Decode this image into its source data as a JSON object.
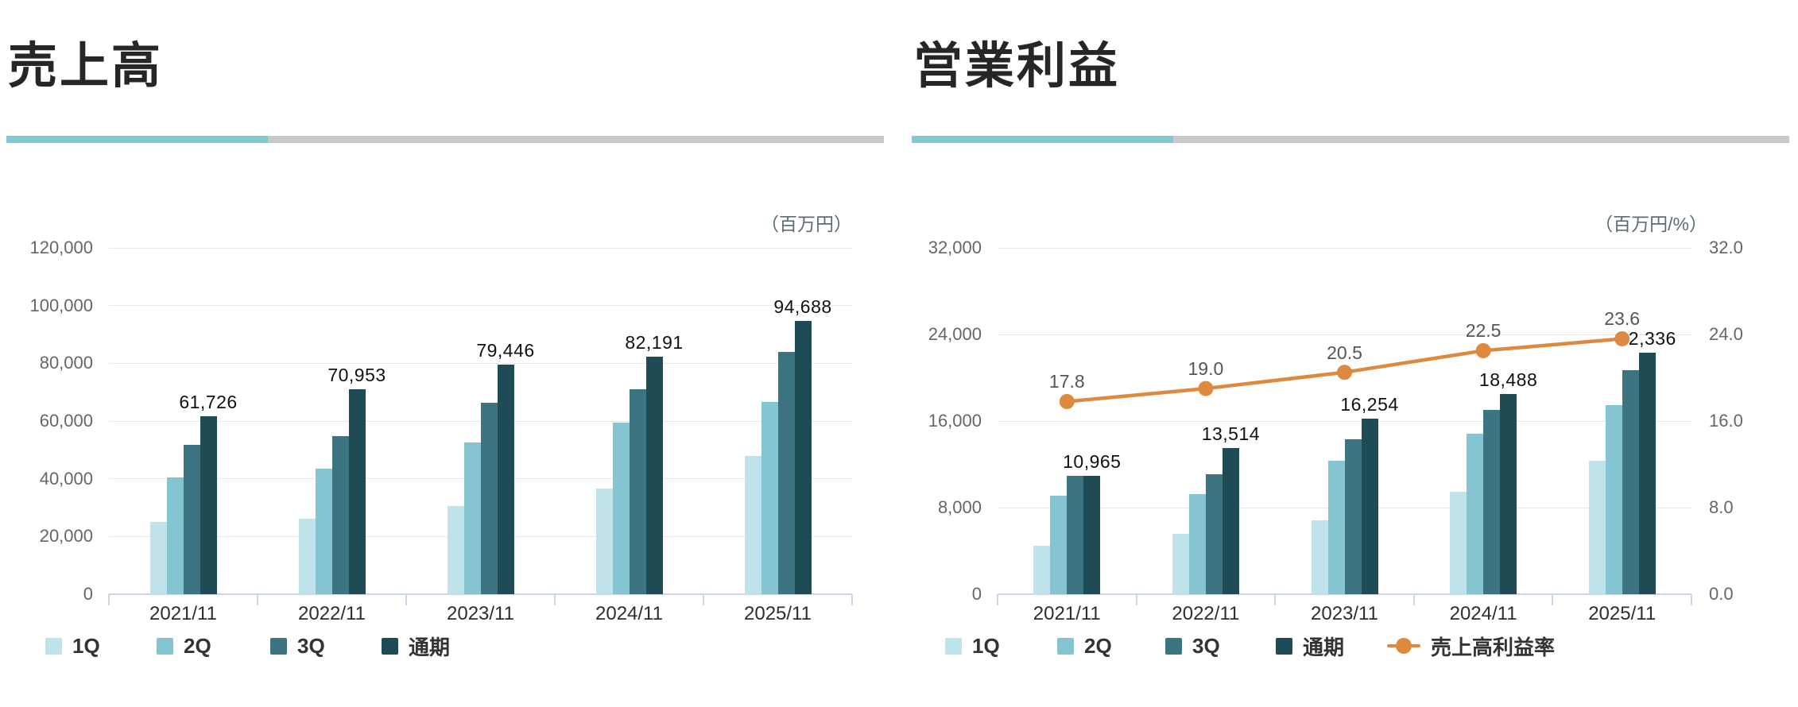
{
  "palette": {
    "q1": "#bfe3ea",
    "q2": "#85c4d1",
    "q3": "#3d7482",
    "full": "#1f4b54",
    "line": "#dd8a40",
    "grid": "#e8e8e8",
    "axis": "#ccd6eb",
    "rule_accent": "#7fc9d4",
    "rule_rest": "#c9c9c9",
    "title_text": "#262626",
    "tick_text": "#666666",
    "category_text": "#2e2e2e",
    "data_label_text": "#111111",
    "line_label_text": "#555555",
    "unit_text": "#5a6e72"
  },
  "chart_data": [
    {
      "type": "bar",
      "title": "売上高",
      "unit_label": "（百万円）",
      "legend_position": "bottom-left",
      "grid": true,
      "categories": [
        "2021/11",
        "2022/11",
        "2023/11",
        "2024/11",
        "2025/11"
      ],
      "series": [
        {
          "key": "q1",
          "name": "1Q",
          "color_key": "q1",
          "values": [
            25000,
            26200,
            30600,
            36500,
            48000
          ]
        },
        {
          "key": "q2",
          "name": "2Q",
          "color_key": "q2",
          "values": [
            40500,
            43500,
            52500,
            59500,
            66500
          ]
        },
        {
          "key": "q3",
          "name": "3Q",
          "color_key": "q3",
          "values": [
            51700,
            54800,
            66300,
            71000,
            84000
          ]
        },
        {
          "key": "full",
          "name": "通期",
          "color_key": "full",
          "values": [
            61726,
            70953,
            79446,
            82191,
            94688
          ],
          "labels": [
            "61,726",
            "70,953",
            "79,446",
            "82,191",
            "94,688"
          ]
        }
      ],
      "y_axis": {
        "max": 120000,
        "ticks": [
          {
            "v": 120000,
            "label": "120,000"
          },
          {
            "v": 100000,
            "label": "100,000"
          },
          {
            "v": 80000,
            "label": "80,000"
          },
          {
            "v": 60000,
            "label": "60,000"
          },
          {
            "v": 40000,
            "label": "40,000"
          },
          {
            "v": 20000,
            "label": "20,000"
          },
          {
            "v": 0,
            "label": "0"
          }
        ]
      }
    },
    {
      "type": "bar+line",
      "title": "営業利益",
      "unit_label": "（百万円/%）",
      "legend_position": "bottom-left",
      "grid": true,
      "categories": [
        "2021/11",
        "2022/11",
        "2023/11",
        "2024/11",
        "2025/11"
      ],
      "series": [
        {
          "key": "q1",
          "name": "1Q",
          "color_key": "q1",
          "values": [
            4500,
            5600,
            6800,
            9500,
            12300
          ]
        },
        {
          "key": "q2",
          "name": "2Q",
          "color_key": "q2",
          "values": [
            9100,
            9250,
            12300,
            14800,
            17500
          ]
        },
        {
          "key": "q3",
          "name": "3Q",
          "color_key": "q3",
          "values": [
            10900,
            11100,
            14300,
            17000,
            20700
          ]
        },
        {
          "key": "full",
          "name": "通期",
          "color_key": "full",
          "values": [
            10965,
            13514,
            16254,
            18488,
            22336
          ],
          "labels": [
            "10,965",
            "13,514",
            "16,254",
            "18,488",
            "22,336"
          ]
        }
      ],
      "line_series": {
        "key": "margin",
        "name": "売上高利益率",
        "color_key": "line",
        "values": [
          17.8,
          19.0,
          20.5,
          22.5,
          23.6
        ],
        "labels": [
          "17.8",
          "19.0",
          "20.5",
          "22.5",
          "23.6"
        ]
      },
      "y_axis": {
        "max": 32000,
        "ticks": [
          {
            "v": 32000,
            "label": "32,000"
          },
          {
            "v": 24000,
            "label": "24,000"
          },
          {
            "v": 16000,
            "label": "16,000"
          },
          {
            "v": 8000,
            "label": "8,000"
          },
          {
            "v": 0,
            "label": "0"
          }
        ]
      },
      "y2_axis": {
        "max": 32,
        "ticks": [
          {
            "v": 32,
            "label": "32.0"
          },
          {
            "v": 24,
            "label": "24.0"
          },
          {
            "v": 16,
            "label": "16.0"
          },
          {
            "v": 8,
            "label": "8.0"
          },
          {
            "v": 0,
            "label": "0.0"
          }
        ]
      }
    }
  ]
}
